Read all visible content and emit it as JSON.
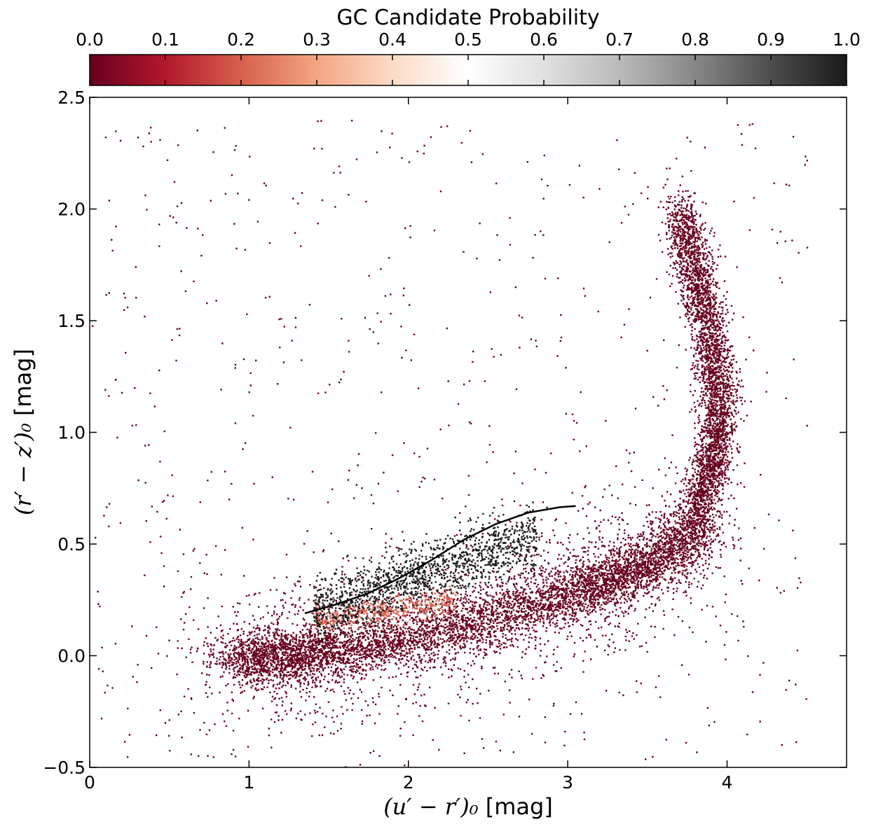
{
  "chart_data": {
    "type": "scatter",
    "colorbar": {
      "title": "GC Candidate Probability",
      "ticks": [
        "0.0",
        "0.1",
        "0.2",
        "0.3",
        "0.4",
        "0.5",
        "0.6",
        "0.7",
        "0.8",
        "0.9",
        "1.0"
      ],
      "range": [
        0,
        1
      ],
      "colormap": "RdGy",
      "placement": "top"
    },
    "x_axis": {
      "label_math": "(u′ − r′)₀",
      "label_unit": " [mag]",
      "range": [
        0,
        4.75
      ],
      "ticks": [
        "0",
        "1",
        "2",
        "3",
        "4"
      ]
    },
    "y_axis": {
      "label_math": "(r′ − z′)₀",
      "label_unit": " [mag]",
      "range": [
        -0.5,
        2.5
      ],
      "ticks": [
        "−0.5",
        "0.0",
        "0.5",
        "1.0",
        "1.5",
        "2.0",
        "2.5"
      ]
    },
    "grid": false,
    "point_colors": {
      "low_probability": "#67001f",
      "high_probability": "#1a1a1a"
    },
    "curve_color": "#000000",
    "fiducial_curve": {
      "x": [
        1.35,
        1.55,
        1.75,
        1.95,
        2.15,
        2.35,
        2.55,
        2.75,
        2.95,
        3.05
      ],
      "y": [
        0.19,
        0.23,
        0.28,
        0.35,
        0.43,
        0.52,
        0.59,
        0.64,
        0.665,
        0.67
      ]
    },
    "distribution": {
      "stellar_sequence_x": [
        0.9,
        1.2,
        1.5,
        2.0,
        2.5,
        3.0,
        3.3,
        3.6,
        3.8,
        3.9,
        3.95,
        3.9,
        3.8,
        3.7
      ],
      "stellar_sequence_y": [
        -0.02,
        0.0,
        0.02,
        0.08,
        0.17,
        0.28,
        0.35,
        0.45,
        0.6,
        0.85,
        1.1,
        1.4,
        1.7,
        2.0
      ],
      "gc_cloud_x": [
        1.4,
        2.8
      ],
      "gc_cloud_y": [
        0.2,
        0.65
      ]
    }
  }
}
